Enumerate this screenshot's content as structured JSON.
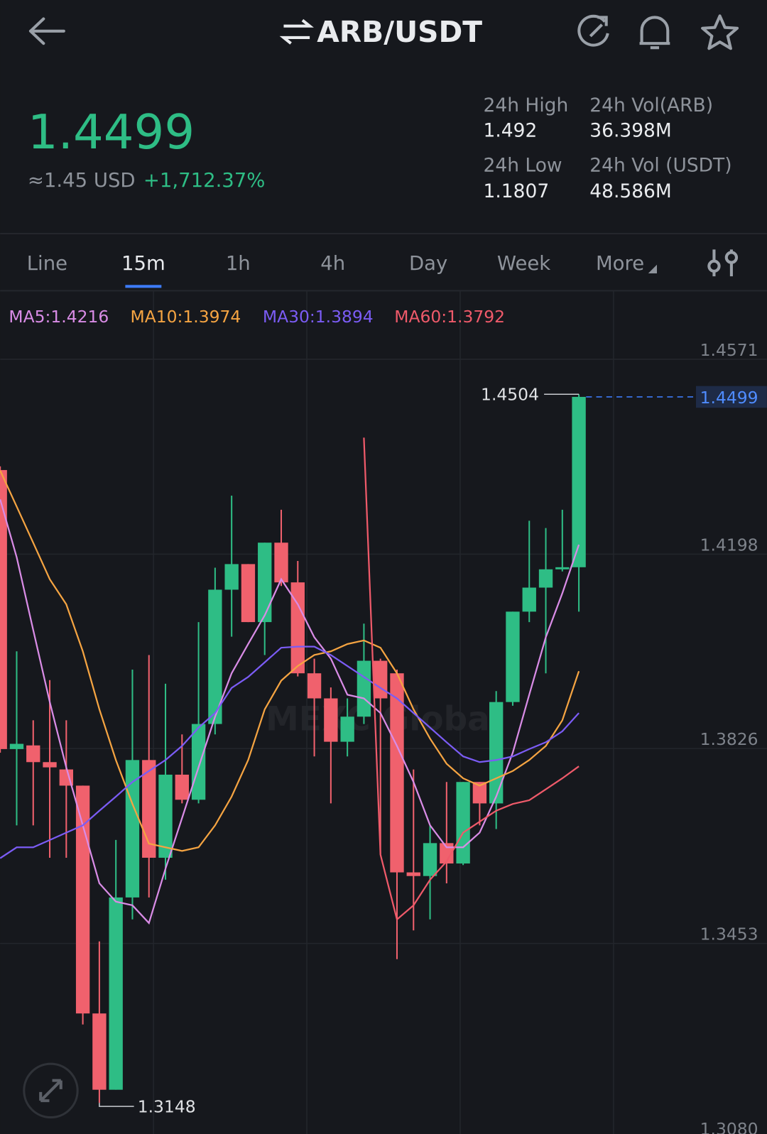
{
  "header": {
    "title": "ARB/USDT"
  },
  "ticker": {
    "price": "1.4499",
    "usd": "≈1.45 USD",
    "change": "+1,712.37%"
  },
  "stats": [
    {
      "label": "24h High",
      "value": "1.492"
    },
    {
      "label": "24h Vol(ARB)",
      "value": "36.398M"
    },
    {
      "label": "24h Low",
      "value": "1.1807"
    },
    {
      "label": "24h Vol (USDT)",
      "value": "48.586M"
    }
  ],
  "tabs": {
    "items": [
      "Line",
      "15m",
      "1h",
      "4h",
      "Day",
      "Week",
      "More"
    ],
    "active": 1
  },
  "watermark": "MEXC Global",
  "chart_data": {
    "type": "candlestick",
    "categories": [
      null,
      null,
      null,
      null,
      null,
      null,
      null,
      null,
      null,
      null,
      null,
      null,
      null,
      null,
      null,
      null,
      null,
      null,
      null,
      null,
      null,
      null,
      null,
      null,
      null,
      null,
      null,
      null,
      null,
      null,
      null,
      null,
      null,
      null,
      null,
      null
    ],
    "open": [
      1.4359,
      1.3825,
      1.3832,
      1.38,
      1.3786,
      1.3755,
      1.3319,
      1.3173,
      1.3541,
      1.3804,
      1.3617,
      1.3776,
      1.3728,
      1.3873,
      1.413,
      1.4179,
      1.4068,
      1.422,
      1.4144,
      1.397,
      1.3922,
      1.3839,
      1.3887,
      1.3994,
      1.397,
      1.3589,
      1.3582,
      1.3645,
      1.3606,
      1.3762,
      1.3721,
      1.3915,
      1.4088,
      1.4134,
      1.4169,
      1.4173
    ],
    "high": [
      1.4366,
      1.4012,
      1.388,
      1.3957,
      1.388,
      1.3755,
      1.3457,
      1.3651,
      1.3977,
      1.4005,
      1.395,
      1.3853,
      1.4068,
      1.4172,
      1.431,
      1.4179,
      1.422,
      1.4283,
      1.4185,
      1.3998,
      1.3943,
      1.3922,
      1.4065,
      1.3998,
      1.3977,
      1.3786,
      1.3679,
      1.3762,
      1.3762,
      1.3762,
      1.3936,
      1.4088,
      1.4262,
      1.4248,
      1.4283,
      1.4504
    ],
    "low": [
      1.3818,
      1.3679,
      1.3679,
      1.3617,
      1.3617,
      1.3298,
      1.3148,
      1.3173,
      1.3499,
      1.3541,
      1.3575,
      1.3721,
      1.3721,
      1.3853,
      1.404,
      1.4068,
      1.4005,
      1.4137,
      1.3964,
      1.3811,
      1.3721,
      1.3811,
      1.3873,
      1.3624,
      1.3423,
      1.3478,
      1.3499,
      1.3568,
      1.3603,
      1.3679,
      1.3672,
      1.3908,
      1.4068,
      1.397,
      1.4165,
      1.4088
    ],
    "close": [
      1.3825,
      1.3835,
      1.38,
      1.379,
      1.3755,
      1.3319,
      1.3173,
      1.3541,
      1.3804,
      1.3617,
      1.3776,
      1.3728,
      1.3873,
      1.413,
      1.4179,
      1.4068,
      1.422,
      1.4144,
      1.397,
      1.3922,
      1.3839,
      1.3887,
      1.3994,
      1.3922,
      1.3589,
      1.3582,
      1.3645,
      1.3606,
      1.3762,
      1.3721,
      1.3915,
      1.4088,
      1.4134,
      1.4169,
      1.4173,
      1.4499
    ],
    "up_color": "#2ebd85",
    "down_color": "#f0616d",
    "series": [
      {
        "name": "MA5:1.4216",
        "color": "#d98ce6",
        "values": [
          1.4303,
          1.4192,
          1.4053,
          1.3915,
          1.379,
          1.3679,
          1.3568,
          1.3533,
          1.3526,
          1.3492,
          1.3596,
          1.3693,
          1.379,
          1.3887,
          1.397,
          1.4026,
          1.4081,
          1.415,
          1.4102,
          1.4039,
          1.3998,
          1.3929,
          1.3922,
          1.3894,
          1.3831,
          1.3762,
          1.3679,
          1.3637,
          1.3637,
          1.3665,
          1.3734,
          1.3818,
          1.3929,
          1.4039,
          1.4123,
          1.4216
        ]
      },
      {
        "name": "MA10:1.3974",
        "color": "#f5a442",
        "values": [
          1.4358,
          1.4289,
          1.422,
          1.415,
          1.4102,
          1.4012,
          1.3901,
          1.3804,
          1.372,
          1.3644,
          1.3637,
          1.363,
          1.3637,
          1.3679,
          1.3734,
          1.3804,
          1.3901,
          1.3956,
          1.3984,
          1.4005,
          1.4012,
          1.4026,
          1.4033,
          1.4019,
          1.397,
          1.3901,
          1.3845,
          1.3797,
          1.3769,
          1.3755,
          1.3769,
          1.3783,
          1.3804,
          1.3831,
          1.388,
          1.3974
        ]
      },
      {
        "name": "MA30:1.3894",
        "color": "#7b5cf5",
        "values": [
          1.3616,
          1.3637,
          1.3637,
          1.3651,
          1.3665,
          1.3679,
          1.3707,
          1.3734,
          1.3762,
          1.3783,
          1.3804,
          1.3831,
          1.3866,
          1.3894,
          1.3942,
          1.3963,
          1.3991,
          1.4019,
          1.4021,
          1.4021,
          1.4005,
          1.3984,
          1.3963,
          1.3942,
          1.3922,
          1.3894,
          1.3866,
          1.3838,
          1.3811,
          1.38,
          1.3804,
          1.3811,
          1.3825,
          1.3838,
          1.3859,
          1.3894
        ]
      },
      {
        "name": "MA60:1.3792",
        "color": "#ef5a6a",
        "values": [
          null,
          null,
          null,
          null,
          null,
          null,
          null,
          null,
          null,
          null,
          null,
          null,
          null,
          null,
          null,
          null,
          null,
          null,
          null,
          null,
          null,
          null,
          1.4421,
          1.3623,
          1.3499,
          1.3526,
          1.3575,
          1.361,
          1.3665,
          1.3686,
          1.3707,
          1.372,
          1.3727,
          1.3748,
          1.3769,
          1.3792
        ]
      }
    ],
    "ylim": [
      1.308,
      1.4698
    ],
    "yticks": [
      1.4571,
      1.4198,
      1.3826,
      1.3453,
      {
        "value": 1.308,
        "label": "1.3080"
      }
    ],
    "grid": true
  }
}
